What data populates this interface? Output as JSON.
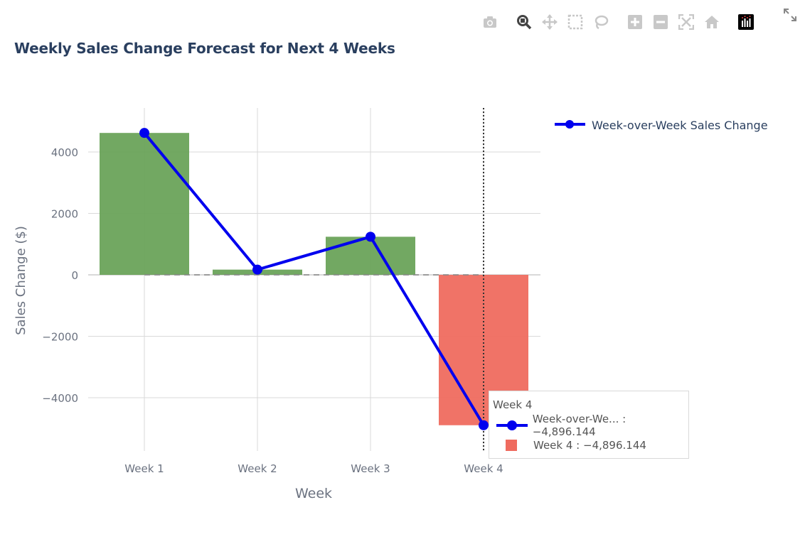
{
  "chart_data": {
    "type": "bar",
    "title": "Weekly Sales Change Forecast for Next 4 Weeks",
    "xlabel": "Week",
    "ylabel": "Sales Change ($)",
    "categories": [
      "Week 1",
      "Week 2",
      "Week 3",
      "Week 4"
    ],
    "values": [
      4620,
      170,
      1240,
      -4896.144
    ],
    "bar_colors": [
      "#6aa35a",
      "#6aa35a",
      "#6aa35a",
      "#ef6b5f"
    ],
    "ylim": [
      -5800,
      5400
    ],
    "yticks": [
      4000,
      2000,
      0,
      -2000,
      -4000
    ],
    "ytick_labels": [
      "4000",
      "2000",
      "0",
      "−2000",
      "−4000"
    ],
    "grid": true,
    "legend_position": "top-right",
    "series": [
      {
        "name": "Week-over-Week Sales Change",
        "type": "line",
        "color": "#0000ee",
        "values": [
          4620,
          170,
          1240,
          -4896.144
        ]
      }
    ],
    "zero_line": "dashed",
    "hover": {
      "category": "Week 4",
      "line_label": "Week-over-We... : −4,896.144",
      "bar_label": "Week 4 : −4,896.144"
    }
  },
  "toolbar": {
    "icons": [
      "camera-icon",
      "zoom-icon",
      "pan-icon",
      "box-select-icon",
      "lasso-icon",
      "zoom-in-icon",
      "zoom-out-icon",
      "autoscale-icon",
      "reset-axes-icon",
      "plotly-logo-icon",
      "fullscreen-icon"
    ]
  }
}
